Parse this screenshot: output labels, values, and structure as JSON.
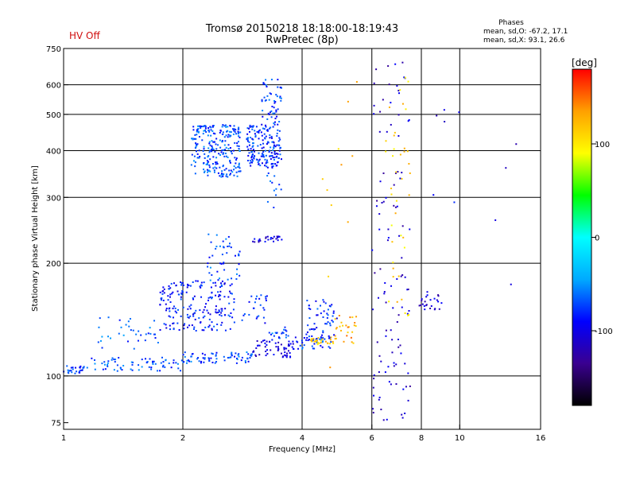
{
  "status": {
    "text": "HV Off",
    "color": "#d01010"
  },
  "colorbar": {
    "unit": "[deg]",
    "ticks": [
      100,
      0,
      -100
    ],
    "range": [
      -180,
      180
    ],
    "stops": [
      "#000000",
      "#3a0090",
      "#0000ff",
      "#00aaff",
      "#00ffff",
      "#00ff00",
      "#ffff00",
      "#ffa000",
      "#ff0000"
    ]
  },
  "chart_data": {
    "type": "scatter",
    "title": "Tromsø 20150218 18:18:00-18:19:43",
    "subtitle": "RwPretec (8p)",
    "phase_box": {
      "title": "Phases",
      "line_o": "mean, sd,O: -67.2, 17.1",
      "line_x": "mean, sd,X:  93.1, 26.6"
    },
    "xlabel": "Frequency [MHz]",
    "ylabel": "Stationary phase Virtual Height [km]",
    "x_scale": "log",
    "y_scale": "log",
    "xlim": [
      1,
      16
    ],
    "ylim": [
      72,
      750
    ],
    "x_ticks": [
      1,
      2,
      4,
      6,
      8,
      10,
      16
    ],
    "y_ticks": [
      75,
      100,
      200,
      300,
      400,
      500,
      600,
      750
    ],
    "x_grid": [
      2,
      4,
      6,
      8,
      10
    ],
    "y_grid": [
      100,
      200,
      300,
      400,
      500,
      600
    ],
    "clusters": [
      {
        "f": [
          1.0,
          1.12
        ],
        "h": [
          101,
          107
        ],
        "phase": -75,
        "n": 25
      },
      {
        "f": [
          1.12,
          2.0
        ],
        "h": [
          103,
          112
        ],
        "phase": -70,
        "n": 70
      },
      {
        "f": [
          2.0,
          3.0
        ],
        "h": [
          108,
          116
        ],
        "phase": -72,
        "n": 70
      },
      {
        "f": [
          3.0,
          3.8
        ],
        "h": [
          112,
          125
        ],
        "phase": -105,
        "n": 60
      },
      {
        "f": [
          3.8,
          4.8
        ],
        "h": [
          118,
          128
        ],
        "phase": -75,
        "n": 40
      },
      {
        "f": [
          4.2,
          4.9
        ],
        "h": [
          121,
          127
        ],
        "phase": 115,
        "n": 25
      },
      {
        "f": [
          4.8,
          5.5
        ],
        "h": [
          122,
          145
        ],
        "phase": 130,
        "n": 25
      },
      {
        "f": [
          1.2,
          1.75
        ],
        "h": [
          118,
          145
        ],
        "phase": -65,
        "n": 35
      },
      {
        "f": [
          1.75,
          2.7
        ],
        "h": [
          132,
          180
        ],
        "phase": -85,
        "n": 200
      },
      {
        "f": [
          2.3,
          2.8
        ],
        "h": [
          180,
          240
        ],
        "phase": -70,
        "n": 45
      },
      {
        "f": [
          2.8,
          3.3
        ],
        "h": [
          138,
          165
        ],
        "phase": -80,
        "n": 25
      },
      {
        "f": [
          3.3,
          3.7
        ],
        "h": [
          126,
          135
        ],
        "phase": -70,
        "n": 20
      },
      {
        "f": [
          4.1,
          4.9
        ],
        "h": [
          125,
          160
        ],
        "phase": -80,
        "n": 55
      },
      {
        "f": [
          3.0,
          3.65
        ],
        "h": [
          228,
          236
        ],
        "phase": -105,
        "n": 25
      },
      {
        "f": [
          2.1,
          2.8
        ],
        "h": [
          340,
          470
        ],
        "phase": -70,
        "n": 250
      },
      {
        "f": [
          2.9,
          3.55
        ],
        "h": [
          360,
          470
        ],
        "phase": -80,
        "n": 180
      },
      {
        "f": [
          3.15,
          3.55
        ],
        "h": [
          470,
          620
        ],
        "phase": -75,
        "n": 50
      },
      {
        "f": [
          3.2,
          3.55
        ],
        "h": [
          280,
          350
        ],
        "phase": -70,
        "n": 12
      },
      {
        "f": [
          6.0,
          7.5
        ],
        "h": [
          75,
          700
        ],
        "phase": -110,
        "n": 110
      },
      {
        "f": [
          6.5,
          7.5
        ],
        "h": [
          140,
          700
        ],
        "phase": 110,
        "n": 40
      },
      {
        "f": [
          7.9,
          9.0
        ],
        "h": [
          150,
          170
        ],
        "phase": -110,
        "n": 25
      },
      {
        "f": [
          4.5,
          5.5
        ],
        "h": [
          80,
          700
        ],
        "phase": 120,
        "n": 12
      },
      {
        "f": [
          8.5,
          14.5
        ],
        "h": [
          160,
          600
        ],
        "phase": -100,
        "n": 10
      }
    ]
  }
}
